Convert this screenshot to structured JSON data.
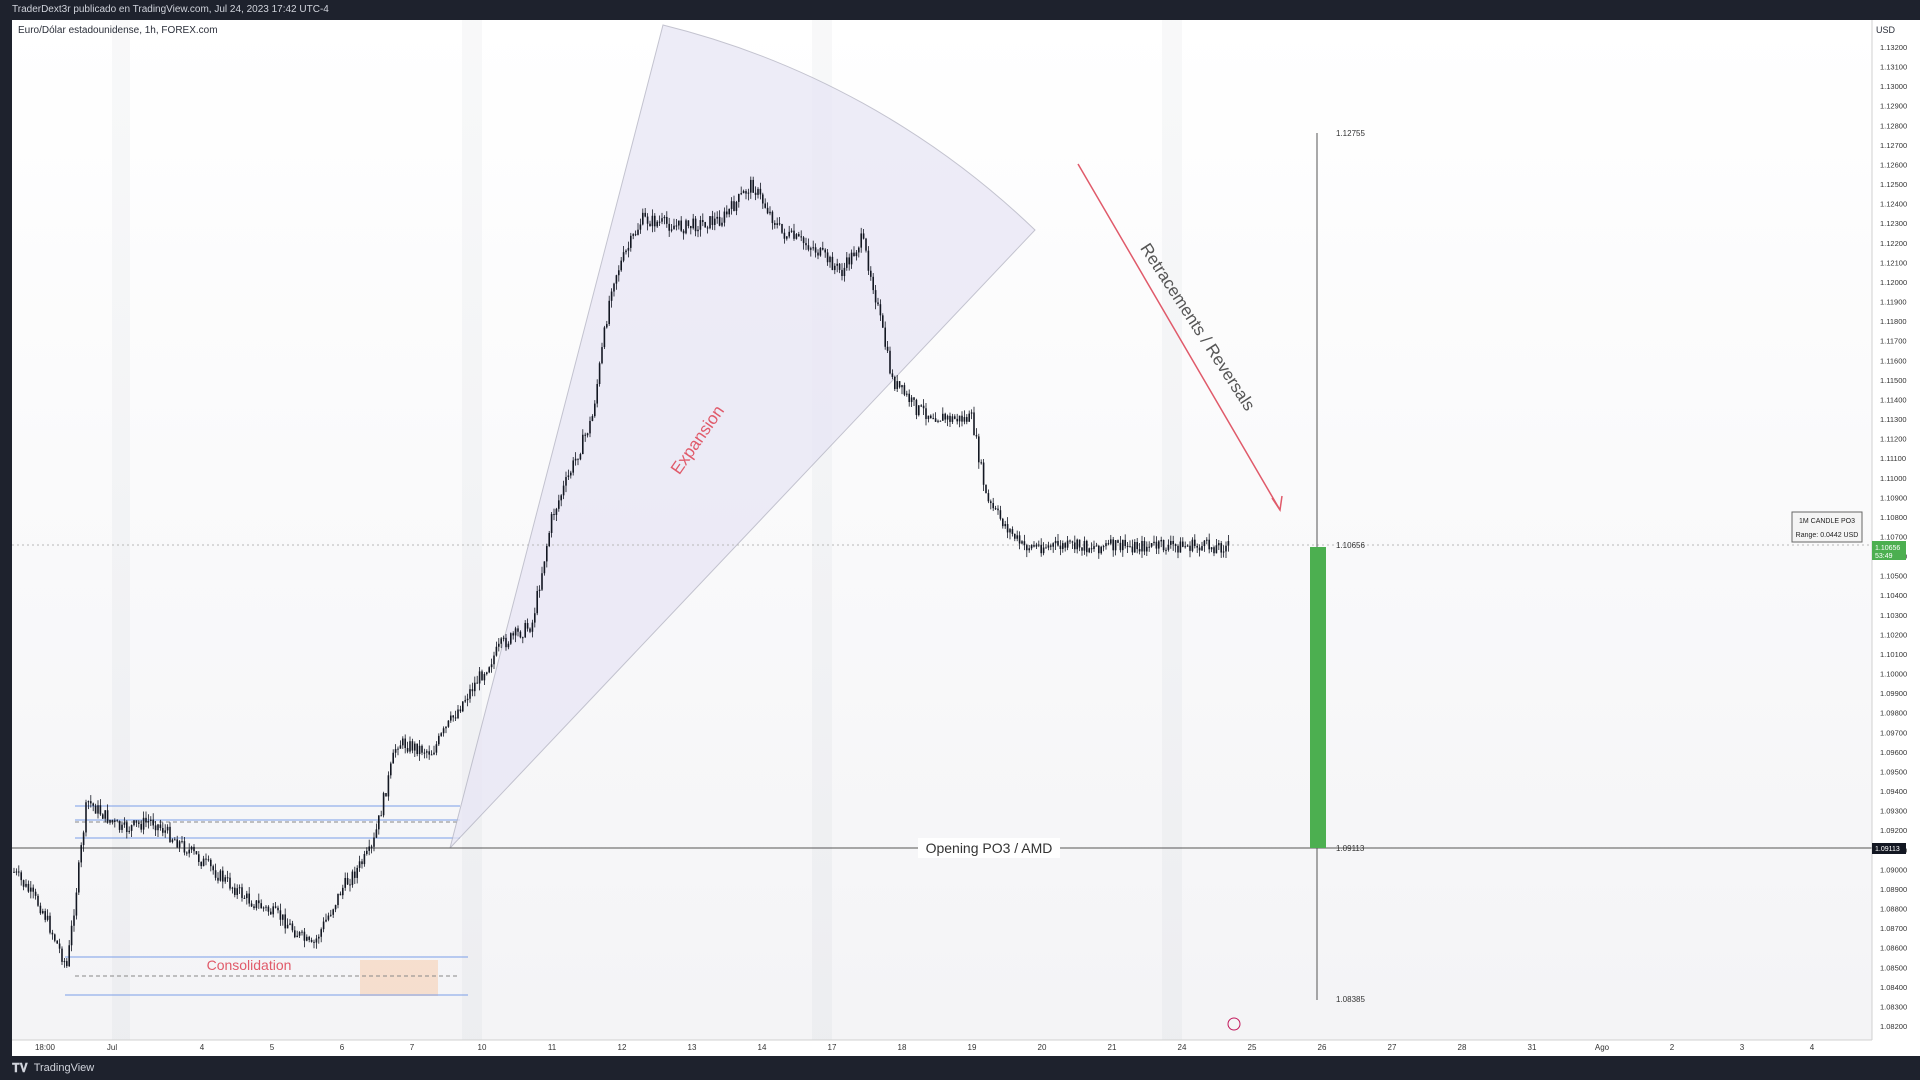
{
  "header": {
    "publish_text": "TraderDext3r publicado en TradingView.com, Jul 24, 2023 17:42 UTC-4"
  },
  "symbol_label": "Euro/Dólar estadounidense, 1h, FOREX.com",
  "currency": "USD",
  "footer": {
    "brand": "TradingView"
  },
  "colors": {
    "background": "#ffffff",
    "candle": "#131722",
    "green_box": "#4caf50",
    "annotation_red": "#e05a6a",
    "fan_fill": "#e8e6f5",
    "session": "#dfe1e6"
  },
  "chart_data": {
    "type": "candlestick",
    "symbol": "EURUSD",
    "timeframe": "1h",
    "ylim": [
      1.0815,
      1.1328
    ],
    "y_ticks": [
      "1.13200",
      "1.13100",
      "1.13000",
      "1.12900",
      "1.12800",
      "1.12700",
      "1.12600",
      "1.12500",
      "1.12400",
      "1.12300",
      "1.12200",
      "1.12100",
      "1.12000",
      "1.11900",
      "1.11800",
      "1.11700",
      "1.11600",
      "1.11500",
      "1.11400",
      "1.11300",
      "1.11200",
      "1.11100",
      "1.11000",
      "1.10900",
      "1.10800",
      "1.10700",
      "1.10600",
      "1.10500",
      "1.10400",
      "1.10300",
      "1.10200",
      "1.10100",
      "1.10000",
      "1.09900",
      "1.09800",
      "1.09700",
      "1.09600",
      "1.09500",
      "1.09400",
      "1.09300",
      "1.09200",
      "1.09100",
      "1.09000",
      "1.08900",
      "1.08800",
      "1.08700",
      "1.08600",
      "1.08500",
      "1.08400",
      "1.08300",
      "1.08200"
    ],
    "x_ticks": [
      "18:00",
      "Jul",
      "4",
      "5",
      "6",
      "7",
      "10",
      "11",
      "12",
      "13",
      "14",
      "17",
      "18",
      "19",
      "20",
      "21",
      "24",
      "25",
      "26",
      "27",
      "28",
      "31",
      "Ago",
      "2",
      "3",
      "4"
    ],
    "price_path": [
      [
        0,
        1.09
      ],
      [
        30,
        1.088
      ],
      [
        55,
        1.085
      ],
      [
        75,
        1.0935
      ],
      [
        110,
        1.092
      ],
      [
        140,
        1.0925
      ],
      [
        200,
        1.09
      ],
      [
        235,
        1.0885
      ],
      [
        270,
        1.0875
      ],
      [
        300,
        1.086
      ],
      [
        330,
        1.089
      ],
      [
        360,
        1.091
      ],
      [
        385,
        1.0965
      ],
      [
        420,
        1.096
      ],
      [
        450,
        1.0985
      ],
      [
        490,
        1.1015
      ],
      [
        520,
        1.1025
      ],
      [
        540,
        1.108
      ],
      [
        580,
        1.113
      ],
      [
        600,
        1.12
      ],
      [
        630,
        1.1232
      ],
      [
        670,
        1.1228
      ],
      [
        710,
        1.1232
      ],
      [
        740,
        1.125
      ],
      [
        770,
        1.1225
      ],
      [
        800,
        1.1218
      ],
      [
        830,
        1.1205
      ],
      [
        850,
        1.1222
      ],
      [
        860,
        1.1202
      ],
      [
        880,
        1.115
      ],
      [
        905,
        1.1135
      ],
      [
        935,
        1.113
      ],
      [
        960,
        1.113
      ],
      [
        975,
        1.1088
      ],
      [
        990,
        1.1078
      ],
      [
        1010,
        1.1065
      ]
    ],
    "session_bands": [
      "Jul 3",
      "Jul 10",
      "Jul 17",
      "Jul 24"
    ],
    "levels": [
      {
        "label": "Opening PO3 / AMD",
        "price": "1.09113"
      },
      {
        "price": "1.12755"
      },
      {
        "price": "1.10656"
      },
      {
        "price": "1.08385"
      }
    ],
    "annotations": {
      "consolidation": "Consolidation",
      "expansion": "Expansion",
      "retracement": "Retracements / Reversals",
      "po3_label": "Opening PO3 / AMD"
    },
    "info_box": {
      "title": "1M CANDLE PO3",
      "range": "Range: 0.0442 USD"
    },
    "last_price": {
      "price": "1.10656",
      "countdown": "53:49"
    },
    "open_price_tag": "1.09113"
  }
}
